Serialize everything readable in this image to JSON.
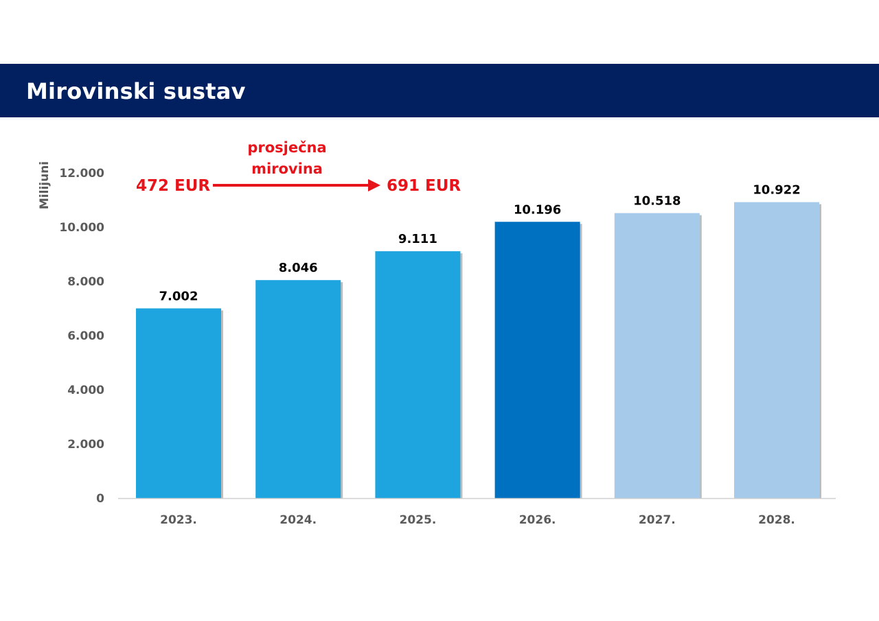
{
  "header": {
    "title": "Mirovinski sustav"
  },
  "colors": {
    "header_bg": "#02205f",
    "bar_actual": "#1ea5df",
    "bar_current": "#0070c0",
    "bar_projected": "#a6cbea",
    "annotation": "#e8141b",
    "axis_text": "#5b5b5b",
    "value_text": "#000000"
  },
  "chart_data": {
    "type": "bar",
    "title": "Mirovinski sustav",
    "xlabel": "",
    "ylabel": "Milijuni",
    "ylim": [
      0,
      12000
    ],
    "yticks": [
      0,
      2000,
      4000,
      6000,
      8000,
      10000,
      12000
    ],
    "ytick_labels": [
      "0",
      "2.000",
      "4.000",
      "6.000",
      "8.000",
      "10.000",
      "12.000"
    ],
    "categories": [
      "2023.",
      "2024.",
      "2025.",
      "2026.",
      "2027.",
      "2028."
    ],
    "values": [
      7002,
      8046,
      9111,
      10196,
      10518,
      10922
    ],
    "value_labels": [
      "7.002",
      "8.046",
      "9.111",
      "10.196",
      "10.518",
      "10.922"
    ],
    "bar_color_keys": [
      "bar_actual",
      "bar_actual",
      "bar_actual",
      "bar_current",
      "bar_projected",
      "bar_projected"
    ],
    "grid": false,
    "annotation": {
      "label_line1": "prosječna",
      "label_line2": "mirovina",
      "from_text": "472 EUR",
      "to_text": "691 EUR"
    }
  }
}
